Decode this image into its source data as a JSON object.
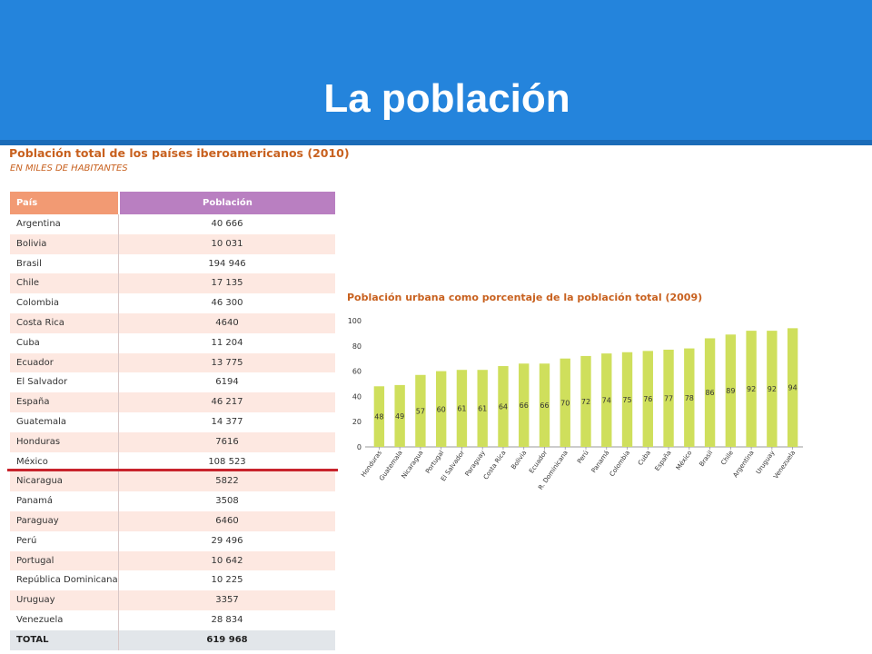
{
  "slide": {
    "title": "La población"
  },
  "population_table": {
    "title": "Población total de los países iberoamericanos (2010)",
    "subtitle": "EN MILES DE HABITANTES",
    "headers": {
      "country": "País",
      "population": "Población"
    },
    "rows": [
      {
        "country": "Argentina",
        "population": "40 666"
      },
      {
        "country": "Bolivia",
        "population": "10 031"
      },
      {
        "country": "Brasil",
        "population": "194 946"
      },
      {
        "country": "Chile",
        "population": "17 135"
      },
      {
        "country": "Colombia",
        "population": "46 300"
      },
      {
        "country": "Costa Rica",
        "population": "4640"
      },
      {
        "country": "Cuba",
        "population": "11 204"
      },
      {
        "country": "Ecuador",
        "population": "13 775"
      },
      {
        "country": "El Salvador",
        "population": "6194"
      },
      {
        "country": "España",
        "population": "46 217"
      },
      {
        "country": "Guatemala",
        "population": "14 377"
      },
      {
        "country": "Honduras",
        "population": "7616"
      },
      {
        "country": "México",
        "population": "108 523"
      },
      {
        "country": "Nicaragua",
        "population": "5822"
      },
      {
        "country": "Panamá",
        "population": "3508"
      },
      {
        "country": "Paraguay",
        "population": "6460"
      },
      {
        "country": "Perú",
        "population": "29 496"
      },
      {
        "country": "Portugal",
        "population": "10 642"
      },
      {
        "country": "República Dominicana",
        "population": "10 225"
      },
      {
        "country": "Uruguay",
        "population": "3357"
      },
      {
        "country": "Venezuela",
        "population": "28 834"
      }
    ],
    "total": {
      "label": "TOTAL",
      "value": "619 968"
    }
  },
  "colors": {
    "header_blue": "#2484dc",
    "bar_color": "#cfdf5c",
    "title_orange": "#c8611f",
    "country_header": "#f29a73",
    "population_header": "#b97fc1",
    "row_shade": "#fde8e1",
    "highlight_line": "#c8232c"
  },
  "chart_data": {
    "type": "bar",
    "title": "Población urbana como porcentaje de la población total (2009)",
    "categories": [
      "Honduras",
      "Guatemala",
      "Nicaragua",
      "Portugal",
      "El Salvador",
      "Paraguay",
      "Costa Rica",
      "Bolivia",
      "Ecuador",
      "R. Dominicana",
      "Perú",
      "Panamá",
      "Colombia",
      "Cuba",
      "España",
      "México",
      "Brasil",
      "Chile",
      "Argentina",
      "Uruguay",
      "Venezuela"
    ],
    "values": [
      48,
      49,
      57,
      60,
      61,
      61,
      64,
      66,
      66,
      70,
      72,
      74,
      75,
      76,
      77,
      78,
      86,
      89,
      92,
      92,
      94
    ],
    "ylim": [
      0,
      100
    ],
    "yticks": [
      0,
      20,
      40,
      60,
      80,
      100
    ],
    "xlabel": "",
    "ylabel": "",
    "grid": false,
    "data_labels": true
  }
}
